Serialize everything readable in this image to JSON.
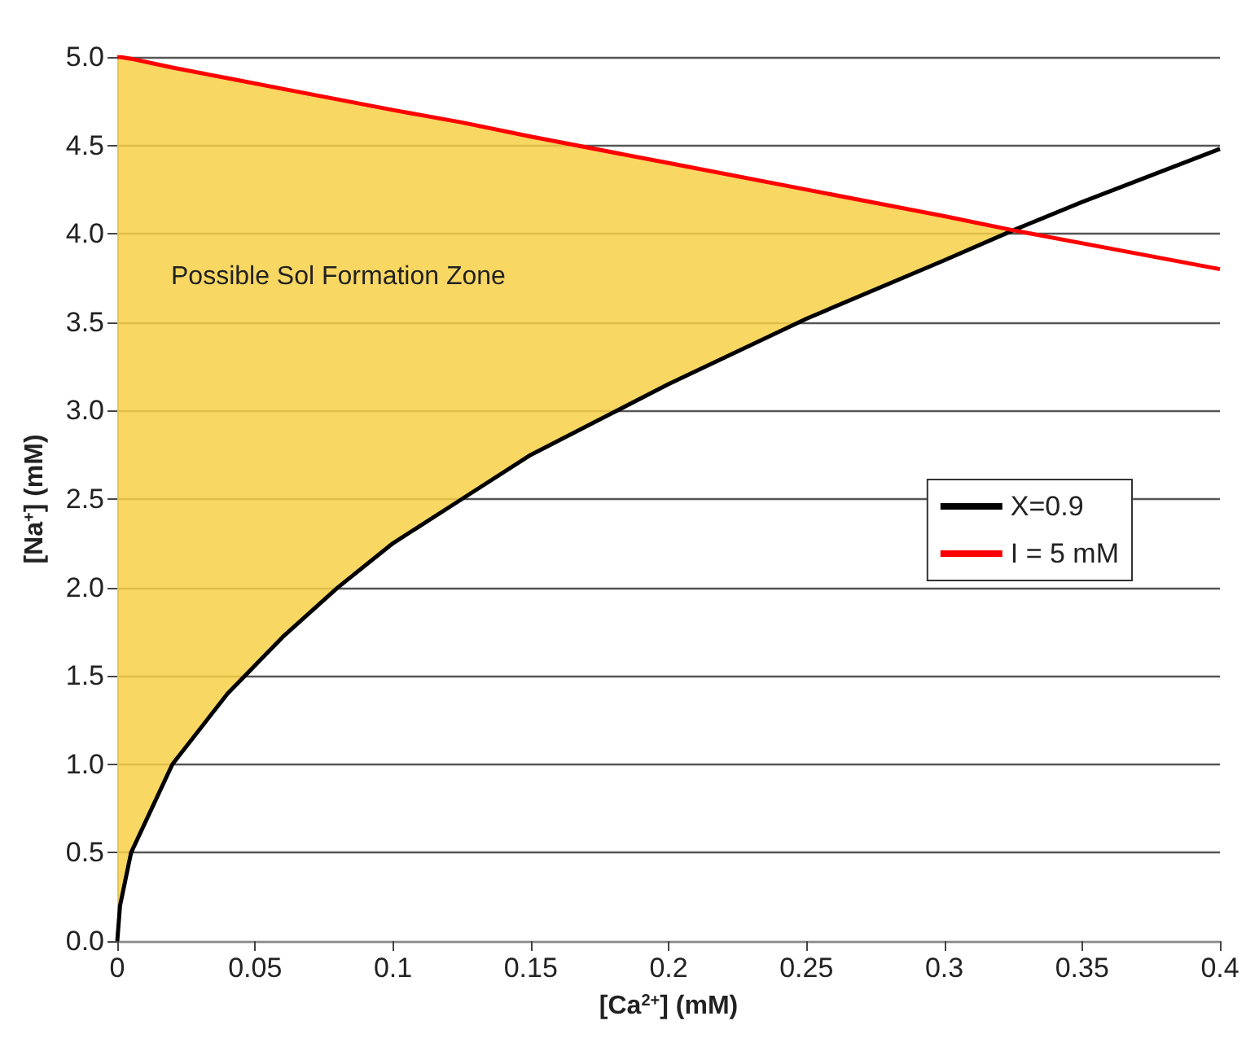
{
  "chart_data": {
    "type": "line",
    "xlabel": "[Ca$^{2+}$] (mM)",
    "ylabel": "[Na$^{+}$] (mM)",
    "xlim": [
      0,
      0.4
    ],
    "xticks": [
      0,
      0.05,
      0.1,
      0.15,
      0.2,
      0.25,
      0.3,
      0.35,
      0.4
    ],
    "ylim": [
      0,
      5
    ],
    "yticks": [
      {
        "value": 0,
        "label": "0.0"
      },
      {
        "value": 0.5,
        "label": "0.5"
      },
      {
        "value": 1,
        "label": "1.0"
      },
      {
        "value": 1.5,
        "label": "1.5"
      },
      {
        "value": 2,
        "label": "2.0"
      },
      {
        "value": 2.5,
        "label": "2.5"
      },
      {
        "value": 3,
        "label": "3.0"
      },
      {
        "value": 3.5,
        "label": "3.5"
      },
      {
        "value": 4,
        "label": "4.0"
      },
      {
        "value": 4.5,
        "label": "4.5"
      },
      {
        "value": 5,
        "label": "5.0"
      }
    ],
    "grid": "y",
    "legend": "right",
    "marker": "none",
    "line_style": "solid",
    "annotations": [
      "Possible Sol Formation Zone"
    ],
    "series": [
      {
        "name": "X=0.9",
        "color": "#000000",
        "x": [
          0,
          0.001,
          0.005,
          0.02,
          0.04,
          0.06,
          0.08,
          0.1,
          0.125,
          0.15,
          0.2,
          0.25,
          0.3,
          0.325,
          0.35,
          0.4
        ],
        "values": [
          0,
          0.2,
          0.5,
          1.0,
          1.4,
          1.72,
          2.0,
          2.25,
          2.5,
          2.75,
          3.15,
          3.52,
          3.85,
          4.02,
          4.18,
          4.48
        ]
      },
      {
        "name": "I = 5 mM",
        "color": "#ff0000",
        "x": [
          0,
          0.001,
          0.005,
          0.02,
          0.04,
          0.06,
          0.08,
          0.1,
          0.125,
          0.15,
          0.2,
          0.25,
          0.3,
          0.325,
          0.4
        ],
        "values": [
          5,
          5,
          4.99,
          4.94,
          4.88,
          4.82,
          4.76,
          4.7,
          4.63,
          4.55,
          4.4,
          4.25,
          4.1,
          4.02,
          3.8
        ],
        "upper": [
          5,
          5,
          4.99,
          4.94,
          4.88,
          4.82,
          4.76,
          4.7,
          4.63,
          4.55,
          4.4,
          4.25,
          4.1,
          4.02,
          null
        ],
        "lower": [
          0,
          0.2,
          0.5,
          1.0,
          1.4,
          1.72,
          2.0,
          2.25,
          2.5,
          2.75,
          3.15,
          3.52,
          3.85,
          4.02,
          null
        ]
      }
    ]
  }
}
